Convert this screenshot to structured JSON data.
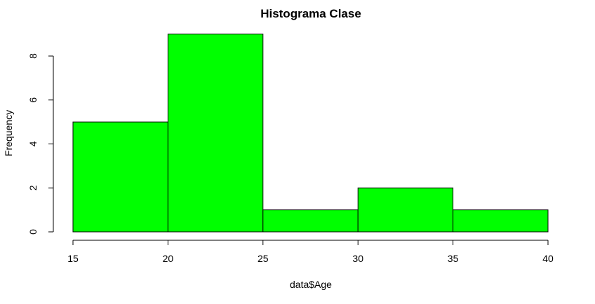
{
  "chart_data": {
    "type": "bar",
    "title": "Histograma Clase",
    "xlabel": "data$Age",
    "ylabel": "Frequency",
    "bins": [
      {
        "from": 15,
        "to": 20,
        "count": 5
      },
      {
        "from": 20,
        "to": 25,
        "count": 9
      },
      {
        "from": 25,
        "to": 30,
        "count": 1
      },
      {
        "from": 30,
        "to": 35,
        "count": 2
      },
      {
        "from": 35,
        "to": 40,
        "count": 1
      }
    ],
    "xlim": [
      15,
      40
    ],
    "ylim": [
      0,
      9
    ],
    "x_ticks": [
      15,
      20,
      25,
      30,
      35,
      40
    ],
    "y_ticks": [
      0,
      2,
      4,
      6,
      8
    ],
    "bar_color": "#00ff00",
    "border_color": "#000000",
    "grid": false
  }
}
